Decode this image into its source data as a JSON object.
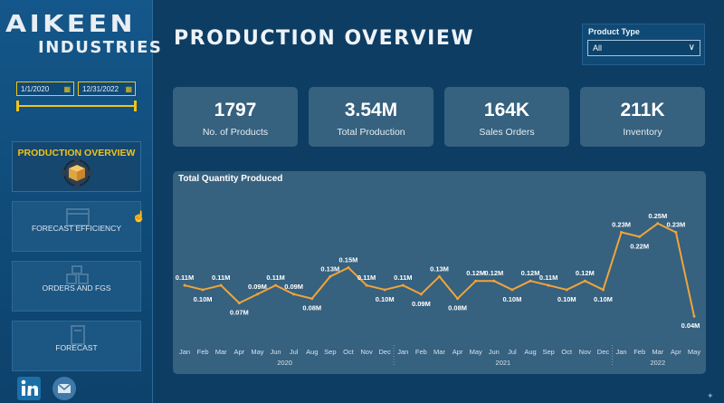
{
  "brand": {
    "line1": "AIKEEN",
    "line2": "INDUSTRIES"
  },
  "date_range": {
    "start": "1/1/2020",
    "end": "12/31/2022"
  },
  "nav": [
    {
      "label": "PRODUCTION OVERVIEW",
      "active": true,
      "icon": "gear-box-icon"
    },
    {
      "label": "FORECAST EFFICIENCY",
      "active": false,
      "icon": "calendar-chart-icon"
    },
    {
      "label": "ORDERS AND FGS",
      "active": false,
      "icon": "boxes-icon"
    },
    {
      "label": "FORECAST",
      "active": false,
      "icon": "calculator-icon"
    }
  ],
  "social": [
    "linkedin-icon",
    "email-icon"
  ],
  "page_title": "PRODUCTION OVERVIEW",
  "filter": {
    "label": "Product Type",
    "value": "All"
  },
  "kpis": [
    {
      "value": "1797",
      "label": "No. of Products"
    },
    {
      "value": "3.54M",
      "label": "Total Production"
    },
    {
      "value": "164K",
      "label": "Sales Orders"
    },
    {
      "value": "211K",
      "label": "Inventory"
    }
  ],
  "chart_data": {
    "type": "line",
    "title": "Total Quantity Produced",
    "color": "#f0a43a",
    "x": [
      "Jan",
      "Feb",
      "Mar",
      "Apr",
      "May",
      "Jun",
      "Jul",
      "Aug",
      "Sep",
      "Oct",
      "Nov",
      "Dec",
      "Jan",
      "Feb",
      "Mar",
      "Apr",
      "May",
      "Jun",
      "Jul",
      "Aug",
      "Sep",
      "Oct",
      "Nov",
      "Dec",
      "Jan",
      "Feb",
      "Mar",
      "Apr",
      "May"
    ],
    "years": [
      {
        "label": "2020",
        "start": 0,
        "end": 11
      },
      {
        "label": "2021",
        "start": 12,
        "end": 23
      },
      {
        "label": "2022",
        "start": 24,
        "end": 28
      }
    ],
    "values": [
      0.11,
      0.1,
      0.11,
      0.07,
      0.09,
      0.11,
      0.09,
      0.08,
      0.13,
      0.15,
      0.11,
      0.1,
      0.11,
      0.09,
      0.13,
      0.08,
      0.12,
      0.12,
      0.1,
      0.12,
      0.11,
      0.1,
      0.12,
      0.1,
      0.23,
      0.22,
      0.25,
      0.23,
      0.04
    ],
    "labels": [
      "0.11M",
      "0.10M",
      "0.11M",
      "0.07M",
      "0.09M",
      "0.11M",
      "0.09M",
      "0.08M",
      "0.13M",
      "0.15M",
      "0.11M",
      "0.10M",
      "0.11M",
      "0.09M",
      "0.13M",
      "0.08M",
      "0.12M",
      "0.12M",
      "0.10M",
      "0.12M",
      "0.11M",
      "0.10M",
      "0.12M",
      "0.10M",
      "0.23M",
      "0.22M",
      "0.25M",
      "0.23M",
      "0.04M"
    ],
    "ylim": [
      0.02,
      0.27
    ]
  }
}
